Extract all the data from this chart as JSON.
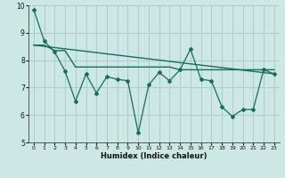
{
  "xlabel": "Humidex (Indice chaleur)",
  "background_color": "#cce8e5",
  "grid_color": "#aaccca",
  "line_color": "#1a6b5a",
  "xlim": [
    -0.5,
    23.5
  ],
  "ylim": [
    5,
    10
  ],
  "yticks": [
    5,
    6,
    7,
    8,
    9,
    10
  ],
  "xticks": [
    0,
    1,
    2,
    3,
    4,
    5,
    6,
    7,
    8,
    9,
    10,
    11,
    12,
    13,
    14,
    15,
    16,
    17,
    18,
    19,
    20,
    21,
    22,
    23
  ],
  "line1_x": [
    0,
    1,
    2,
    3,
    4,
    5,
    6,
    7,
    8,
    9,
    10,
    11,
    12,
    13,
    14,
    15,
    16,
    17,
    18,
    19,
    20,
    21,
    22,
    23
  ],
  "line1_y": [
    9.85,
    8.7,
    8.3,
    7.6,
    6.5,
    7.5,
    6.8,
    7.4,
    7.3,
    7.25,
    5.35,
    7.1,
    7.55,
    7.25,
    7.65,
    8.4,
    7.3,
    7.25,
    6.3,
    5.95,
    6.2,
    6.2,
    7.65,
    7.5
  ],
  "line2_x": [
    0,
    1,
    2,
    3,
    4,
    5,
    6,
    7,
    8,
    9,
    10,
    11,
    12,
    13,
    14,
    15,
    16,
    17,
    18,
    19,
    20,
    21,
    22,
    23
  ],
  "line2_y": [
    8.55,
    8.55,
    8.35,
    8.35,
    7.75,
    7.75,
    7.75,
    7.75,
    7.75,
    7.75,
    7.75,
    7.75,
    7.75,
    7.75,
    7.65,
    7.65,
    7.65,
    7.65,
    7.65,
    7.65,
    7.65,
    7.65,
    7.65,
    7.65
  ],
  "line3_x": [
    0,
    23
  ],
  "line3_y": [
    8.55,
    7.5
  ]
}
